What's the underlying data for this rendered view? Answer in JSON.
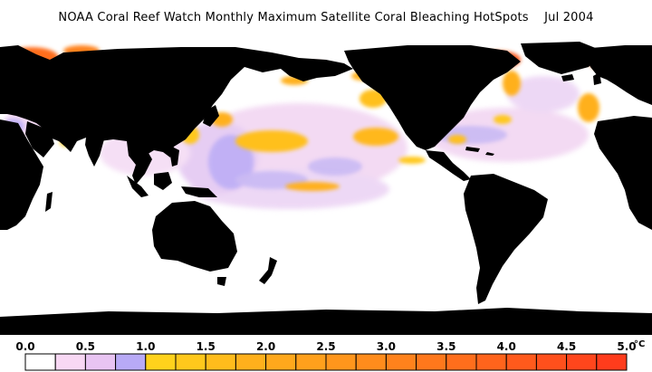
{
  "title": "NOAA Coral Reef Watch Monthly Maximum Satellite Coral Bleaching HotSpots    Jul 2004",
  "colors": {
    "ocean": "#ffffff",
    "land": "#000000"
  },
  "legend": {
    "unit": "°C",
    "tick_labels": [
      "0.0",
      "0.5",
      "1.0",
      "1.5",
      "2.0",
      "2.5",
      "3.0",
      "3.5",
      "4.0",
      "4.5",
      "5.0"
    ],
    "bins": [
      {
        "from": 0.0,
        "to": 0.25,
        "color": "#ffffff"
      },
      {
        "from": 0.25,
        "to": 0.5,
        "color": "#f8d8f4"
      },
      {
        "from": 0.5,
        "to": 0.75,
        "color": "#e8c4f2"
      },
      {
        "from": 0.75,
        "to": 1.0,
        "color": "#b8aaf6"
      },
      {
        "from": 1.0,
        "to": 1.25,
        "color": "#ffd21c"
      },
      {
        "from": 1.25,
        "to": 1.5,
        "color": "#ffc81c"
      },
      {
        "from": 1.5,
        "to": 1.75,
        "color": "#ffbc1c"
      },
      {
        "from": 1.75,
        "to": 2.0,
        "color": "#ffb01c"
      },
      {
        "from": 2.0,
        "to": 2.25,
        "color": "#ffa81c"
      },
      {
        "from": 2.25,
        "to": 2.5,
        "color": "#ffa01c"
      },
      {
        "from": 2.5,
        "to": 2.75,
        "color": "#ff961c"
      },
      {
        "from": 2.75,
        "to": 3.0,
        "color": "#ff8c1c"
      },
      {
        "from": 3.0,
        "to": 3.25,
        "color": "#ff821c"
      },
      {
        "from": 3.25,
        "to": 3.5,
        "color": "#ff781c"
      },
      {
        "from": 3.5,
        "to": 3.75,
        "color": "#ff6e1c"
      },
      {
        "from": 3.75,
        "to": 4.0,
        "color": "#ff641c"
      },
      {
        "from": 4.0,
        "to": 4.25,
        "color": "#ff5a1c"
      },
      {
        "from": 4.25,
        "to": 4.5,
        "color": "#ff501c"
      },
      {
        "from": 4.5,
        "to": 4.75,
        "color": "#ff461c"
      },
      {
        "from": 4.75,
        "to": 5.0,
        "color": "#ff3c1c"
      }
    ]
  }
}
